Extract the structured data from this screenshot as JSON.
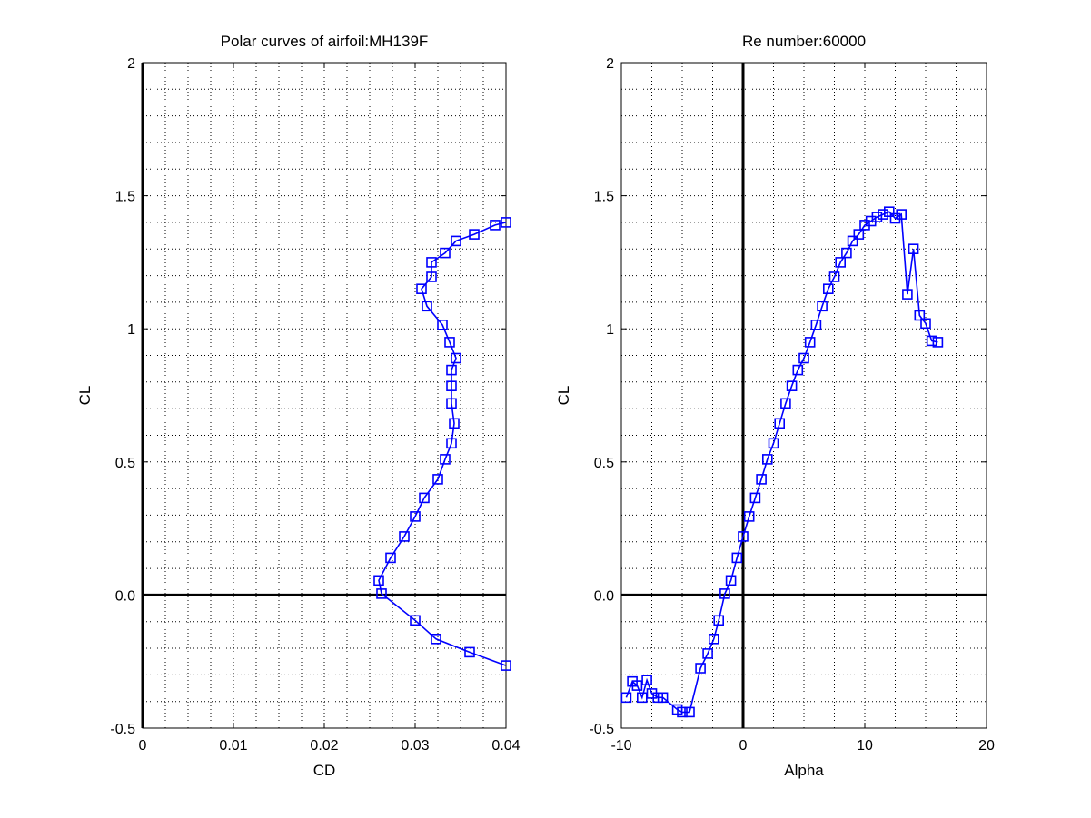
{
  "colors": {
    "series": "#0000ff",
    "axis": "#000000",
    "grid": "#000000",
    "background": "#ffffff"
  },
  "chart_data": [
    {
      "type": "line",
      "title": "Polar curves of airfoil:MH139F",
      "xlabel": "CD",
      "ylabel": "CL",
      "xlim": [
        0,
        0.04
      ],
      "ylim": [
        -0.5,
        2
      ],
      "xticks": [
        0,
        0.01,
        0.02,
        0.03,
        0.04
      ],
      "xtick_labels": [
        "0",
        "0.01",
        "0.02",
        "0.03",
        "0.04"
      ],
      "yticks": [
        -0.5,
        0,
        0.5,
        1,
        1.5,
        2
      ],
      "ytick_labels": [
        "-0.5",
        "0.0",
        "0.5",
        "1",
        "1.5",
        "2"
      ],
      "grid": true,
      "grid_style": "dotted, minor",
      "zero_line": "y=0",
      "marker": "square",
      "series": [
        {
          "points": [
            [
              0.04,
              -0.265
            ],
            [
              0.036,
              -0.215
            ],
            [
              0.0323,
              -0.165
            ],
            [
              0.03,
              -0.095
            ],
            [
              0.0263,
              0.005
            ],
            [
              0.026,
              0.055
            ],
            [
              0.0273,
              0.14
            ],
            [
              0.0288,
              0.22
            ],
            [
              0.03,
              0.295
            ],
            [
              0.031,
              0.365
            ],
            [
              0.0325,
              0.435
            ],
            [
              0.0333,
              0.51
            ],
            [
              0.034,
              0.57
            ],
            [
              0.0343,
              0.645
            ],
            [
              0.034,
              0.72
            ],
            [
              0.034,
              0.785
            ],
            [
              0.034,
              0.845
            ],
            [
              0.0345,
              0.89
            ],
            [
              0.0338,
              0.95
            ],
            [
              0.033,
              1.015
            ],
            [
              0.0313,
              1.085
            ],
            [
              0.0307,
              1.15
            ],
            [
              0.0318,
              1.195
            ],
            [
              0.0318,
              1.25
            ],
            [
              0.0333,
              1.285
            ],
            [
              0.0345,
              1.33
            ],
            [
              0.0365,
              1.355
            ],
            [
              0.0388,
              1.39
            ],
            [
              0.04,
              1.4
            ]
          ]
        }
      ]
    },
    {
      "type": "line",
      "title": "Re number:60000",
      "xlabel": "Alpha",
      "ylabel": "CL",
      "xlim": [
        -10,
        20
      ],
      "ylim": [
        -0.5,
        2
      ],
      "xticks": [
        -10,
        0,
        10,
        20
      ],
      "xtick_labels": [
        "-10",
        "0",
        "10",
        "20"
      ],
      "yticks": [
        -0.5,
        0,
        0.5,
        1,
        1.5,
        2
      ],
      "ytick_labels": [
        "-0.5",
        "0.0",
        "0.5",
        "1",
        "1.5",
        "2"
      ],
      "grid": true,
      "grid_style": "dotted, minor",
      "zero_line": "x=0 and y=0",
      "marker": "square",
      "series": [
        {
          "points": [
            [
              -9.6,
              -0.385
            ],
            [
              -9.1,
              -0.325
            ],
            [
              -8.7,
              -0.34
            ],
            [
              -8.3,
              -0.385
            ],
            [
              -7.9,
              -0.32
            ],
            [
              -7.5,
              -0.37
            ],
            [
              -7.0,
              -0.385
            ],
            [
              -6.6,
              -0.385
            ],
            [
              -5.4,
              -0.43
            ],
            [
              -5.0,
              -0.44
            ],
            [
              -4.4,
              -0.44
            ],
            [
              -3.5,
              -0.275
            ],
            [
              -2.9,
              -0.22
            ],
            [
              -2.4,
              -0.165
            ],
            [
              -2.0,
              -0.095
            ],
            [
              -1.5,
              0.005
            ],
            [
              -1.0,
              0.055
            ],
            [
              -0.5,
              0.14
            ],
            [
              0.0,
              0.22
            ],
            [
              0.5,
              0.295
            ],
            [
              1.0,
              0.365
            ],
            [
              1.5,
              0.435
            ],
            [
              2.0,
              0.51
            ],
            [
              2.5,
              0.57
            ],
            [
              3.0,
              0.645
            ],
            [
              3.5,
              0.72
            ],
            [
              4.0,
              0.785
            ],
            [
              4.5,
              0.845
            ],
            [
              5.0,
              0.89
            ],
            [
              5.5,
              0.95
            ],
            [
              6.0,
              1.015
            ],
            [
              6.5,
              1.085
            ],
            [
              7.0,
              1.15
            ],
            [
              7.5,
              1.195
            ],
            [
              8.0,
              1.25
            ],
            [
              8.5,
              1.285
            ],
            [
              9.0,
              1.33
            ],
            [
              9.5,
              1.355
            ],
            [
              10.0,
              1.39
            ],
            [
              10.5,
              1.405
            ],
            [
              11.0,
              1.42
            ],
            [
              11.5,
              1.43
            ],
            [
              12.0,
              1.44
            ],
            [
              12.5,
              1.415
            ],
            [
              13.0,
              1.43
            ],
            [
              13.5,
              1.13
            ],
            [
              14.0,
              1.3
            ],
            [
              14.5,
              1.05
            ],
            [
              15.0,
              1.02
            ],
            [
              15.5,
              0.955
            ],
            [
              16.0,
              0.95
            ]
          ]
        }
      ]
    }
  ]
}
